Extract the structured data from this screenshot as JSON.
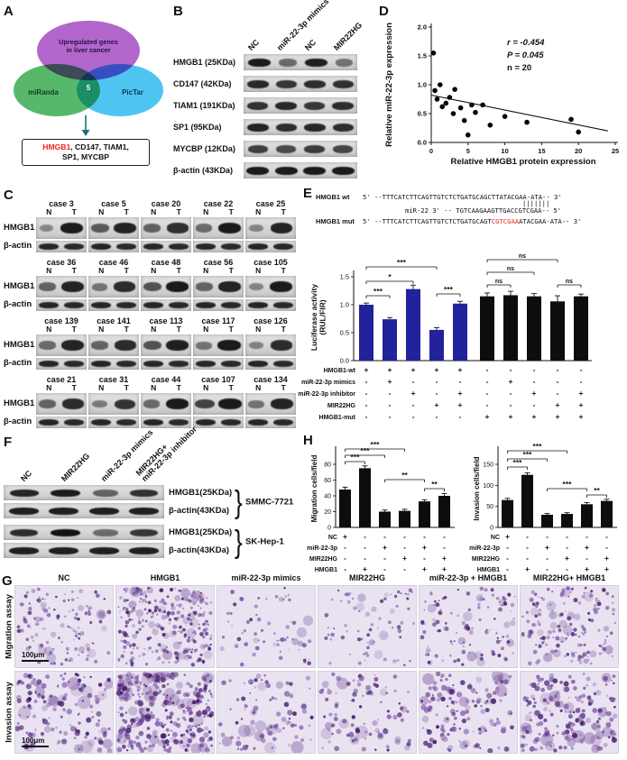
{
  "panels": {
    "A": "A",
    "B": "B",
    "C": "C",
    "D": "D",
    "E": "E",
    "F": "F",
    "G": "G",
    "H": "H"
  },
  "panelA": {
    "circle_top_line1": "Upregulated genes",
    "circle_top_line2": "in liver cancer",
    "circle_left": "miRanda",
    "circle_right": "PicTar",
    "overlap_count": "5",
    "genes_line1_highlight": "HMGB1",
    "genes_line1_rest": ", CD147, TIAM1,",
    "genes_line2": "SP1, MYCBP",
    "colors": {
      "top": "#a751c5",
      "left": "#3fae58",
      "right": "#35bdf0",
      "arrow": "#12737d",
      "highlight": "#e8251f"
    }
  },
  "panelB": {
    "lanes": [
      "NC",
      "miR-22-3p mimics",
      "NC",
      "MIR22HG"
    ],
    "rows": [
      {
        "label": "HMGB1 (25KDa)",
        "bands": [
          0.92,
          0.45,
          0.88,
          0.4
        ]
      },
      {
        "label": "CD147 (42KDa)",
        "bands": [
          0.82,
          0.75,
          0.8,
          0.78
        ]
      },
      {
        "label": "TIAM1 (191KDa)",
        "bands": [
          0.78,
          0.82,
          0.74,
          0.8
        ]
      },
      {
        "label": "SP1 (95KDa)",
        "bands": [
          0.86,
          0.8,
          0.84,
          0.8
        ]
      },
      {
        "label": "MYCBP (12KDa)",
        "bands": [
          0.7,
          0.64,
          0.72,
          0.66
        ]
      },
      {
        "label": "β-actin (43KDa)",
        "bands": [
          0.9,
          0.9,
          0.9,
          0.9
        ]
      }
    ]
  },
  "panelC": {
    "row_labels": [
      "HMGB1",
      "β-actin"
    ],
    "lane_labels": [
      "N",
      "T"
    ],
    "bactin_bands": [
      0.88,
      0.86
    ],
    "groups": [
      {
        "cases": [
          {
            "name": "case 3",
            "hmgb1": [
              0.25,
              0.95
            ]
          },
          {
            "name": "case 5",
            "hmgb1": [
              0.55,
              0.9
            ]
          },
          {
            "name": "case 20",
            "hmgb1": [
              0.5,
              0.82
            ]
          },
          {
            "name": "case 22",
            "hmgb1": [
              0.45,
              0.95
            ]
          },
          {
            "name": "case 25",
            "hmgb1": [
              0.28,
              0.9
            ]
          }
        ]
      },
      {
        "cases": [
          {
            "name": "case 36",
            "hmgb1": [
              0.5,
              0.9
            ]
          },
          {
            "name": "case 46",
            "hmgb1": [
              0.4,
              0.85
            ]
          },
          {
            "name": "case 48",
            "hmgb1": [
              0.6,
              0.95
            ]
          },
          {
            "name": "case 56",
            "hmgb1": [
              0.5,
              0.9
            ]
          },
          {
            "name": "case 105",
            "hmgb1": [
              0.3,
              0.95
            ]
          }
        ]
      },
      {
        "cases": [
          {
            "name": "case 139",
            "hmgb1": [
              0.45,
              0.9
            ]
          },
          {
            "name": "case 141",
            "hmgb1": [
              0.5,
              0.85
            ]
          },
          {
            "name": "case 113",
            "hmgb1": [
              0.6,
              0.92
            ]
          },
          {
            "name": "case 117",
            "hmgb1": [
              0.4,
              0.95
            ]
          },
          {
            "name": "case 126",
            "hmgb1": [
              0.3,
              0.85
            ]
          }
        ]
      },
      {
        "cases": [
          {
            "name": "case 21",
            "hmgb1": [
              0.5,
              0.85
            ]
          },
          {
            "name": "case 31",
            "hmgb1": [
              0.35,
              0.8
            ]
          },
          {
            "name": "case 44",
            "hmgb1": [
              0.45,
              0.95
            ]
          },
          {
            "name": "case 107",
            "hmgb1": [
              0.7,
              0.95
            ]
          },
          {
            "name": "case 134",
            "hmgb1": [
              0.4,
              0.9
            ]
          }
        ]
      }
    ]
  },
  "panelD": {
    "chart": {
      "type": "scatter",
      "xlabel": "Relative HMGB1 protein expression",
      "ylabel": "Relative miR-22-3p expression",
      "xticks": [
        0,
        5,
        10,
        15,
        20,
        25
      ],
      "ytick_labels": [
        "0.0",
        "0.5",
        "1.0",
        "1.5",
        "2.0"
      ],
      "yticks": [
        0,
        0.5,
        1,
        1.5,
        2
      ],
      "xlim": [
        0,
        25
      ],
      "ylim": [
        0,
        2
      ],
      "stats": [
        "r = -0.454",
        "P = 0.045",
        "n = 20"
      ],
      "points": [
        [
          0.3,
          1.55
        ],
        [
          0.5,
          0.9
        ],
        [
          0.8,
          0.75
        ],
        [
          1.2,
          1.0
        ],
        [
          1.5,
          0.62
        ],
        [
          2.0,
          0.68
        ],
        [
          2.5,
          0.78
        ],
        [
          3.0,
          0.5
        ],
        [
          3.2,
          0.92
        ],
        [
          4.0,
          0.6
        ],
        [
          4.5,
          0.38
        ],
        [
          5.0,
          0.13
        ],
        [
          5.5,
          0.65
        ],
        [
          6.0,
          0.52
        ],
        [
          7.0,
          0.65
        ],
        [
          8.0,
          0.3
        ],
        [
          10.0,
          0.45
        ],
        [
          13.0,
          0.35
        ],
        [
          19.0,
          0.4
        ],
        [
          20.0,
          0.18
        ]
      ],
      "trend": [
        [
          0,
          0.82
        ],
        [
          24,
          0.2
        ]
      ]
    }
  },
  "panelE": {
    "seq": {
      "wt_label": "HMGB1 wt",
      "wt_seq": "5' --TTTCATCTTCAGTTGTCTCTGATGCAGCTTATACGAA-ATA-- 3'",
      "pairing": "|||||||",
      "mir_line": "miR-22  3' -- TGTCAAGAAGTTGACCGTCGAA-- 5'",
      "mut_label": "HMGB1 mut",
      "mut_seq_pre": "5' --TTTCATCTTCAGTTGTCTCTGATGCAGT",
      "mut_seq_red": "CGTCGAA",
      "mut_seq_post": "ATACGAA-ATA-- 3'"
    },
    "chart": {
      "type": "bar",
      "ylabel_lines": [
        "Luciferase activity",
        "(RUL/FIR)"
      ],
      "yticks": [
        0,
        0.5,
        1,
        1.5
      ],
      "ylim": [
        0,
        1.5
      ],
      "values": [
        1.0,
        0.74,
        1.28,
        0.55,
        1.02,
        1.15,
        1.17,
        1.15,
        1.06,
        1.15
      ],
      "errors": [
        0.03,
        0.03,
        0.07,
        0.04,
        0.04,
        0.06,
        0.07,
        0.05,
        0.1,
        0.04
      ],
      "bar_colors": [
        "#22229a",
        "#22229a",
        "#22229a",
        "#22229a",
        "#22229a",
        "#0d0d0d",
        "#0d0d0d",
        "#0d0d0d",
        "#0d0d0d",
        "#0d0d0d"
      ],
      "sig": [
        {
          "a": 0,
          "b": 1,
          "label": "***",
          "y": 76
        },
        {
          "a": 0,
          "b": 2,
          "label": "*",
          "y": 60
        },
        {
          "a": 0,
          "b": 3,
          "label": "***",
          "y": 44
        },
        {
          "a": 3,
          "b": 4,
          "label": "***",
          "y": 74
        },
        {
          "a": 5,
          "b": 6,
          "label": "ns",
          "y": 64
        },
        {
          "a": 5,
          "b": 7,
          "label": "ns",
          "y": 50
        },
        {
          "a": 5,
          "b": 8,
          "label": "ns",
          "y": 36
        },
        {
          "a": 8,
          "b": 9,
          "label": "ns",
          "y": 64
        }
      ],
      "matrix": [
        {
          "label": "HMGB1-wt",
          "cells": [
            "+",
            "+",
            "+",
            "+",
            "+",
            "-",
            "-",
            "-",
            "-",
            "-"
          ]
        },
        {
          "label": "miR-22-3p mimics",
          "cells": [
            "-",
            "+",
            "-",
            "-",
            "-",
            "-",
            "+",
            "-",
            "-",
            "-"
          ]
        },
        {
          "label": "miR-22-3p inhibitor",
          "cells": [
            "-",
            "-",
            "+",
            "-",
            "+",
            "-",
            "-",
            "+",
            "-",
            "+"
          ]
        },
        {
          "label": "MIR22HG",
          "cells": [
            "-",
            "-",
            "-",
            "+",
            "+",
            "-",
            "-",
            "-",
            "+",
            "+"
          ]
        },
        {
          "label": "HMGB1-mut",
          "cells": [
            "-",
            "-",
            "-",
            "-",
            "-",
            "+",
            "+",
            "+",
            "+",
            "+"
          ]
        }
      ]
    }
  },
  "panelF": {
    "lanes": [
      "NC",
      "MIR22HG",
      "miR-22-3p mimics",
      "MIR22HG+\nmiR-22-3p inhibitor"
    ],
    "groups": [
      {
        "cell_line": "SMMC-7721",
        "rows": [
          {
            "label": "HMGB1(25KDa)",
            "bands": [
              0.85,
              0.9,
              0.5,
              0.78
            ]
          },
          {
            "label": "β-actin(43KDa)",
            "bands": [
              0.88,
              0.88,
              0.88,
              0.88
            ]
          }
        ]
      },
      {
        "cell_line": "SK-Hep-1",
        "rows": [
          {
            "label": "HMGB1(25KDa)",
            "bands": [
              0.8,
              0.95,
              0.45,
              0.75
            ]
          },
          {
            "label": "β-actin(43KDa)",
            "bands": [
              0.88,
              0.88,
              0.88,
              0.88
            ]
          }
        ]
      }
    ]
  },
  "panelH": {
    "charts": [
      {
        "type": "bar",
        "ylabel": "Migration cells/field",
        "yticks": [
          0,
          20,
          40,
          60,
          80
        ],
        "ylim": [
          0,
          80
        ],
        "values": [
          48,
          75,
          20,
          21,
          33,
          40
        ],
        "errors": [
          3,
          3,
          2,
          2,
          2,
          3
        ],
        "sig": [
          {
            "a": 0,
            "b": 1,
            "label": "***",
            "y": 22
          },
          {
            "a": 0,
            "b": 2,
            "label": "***",
            "y": 15
          },
          {
            "a": 0,
            "b": 3,
            "label": "***",
            "y": 8
          },
          {
            "a": 2,
            "b": 4,
            "label": "**",
            "y": 42
          },
          {
            "a": 4,
            "b": 5,
            "label": "**",
            "y": 52
          }
        ],
        "matrix": [
          {
            "label": "NC",
            "cells": [
              "+",
              "-",
              "-",
              "-",
              "-",
              "-"
            ]
          },
          {
            "label": "miR-22-3p",
            "cells": [
              "-",
              "-",
              "+",
              "-",
              "+",
              "-"
            ]
          },
          {
            "label": "MIR22HG",
            "cells": [
              "-",
              "-",
              "-",
              "+",
              "-",
              "+"
            ]
          },
          {
            "label": "HMGB1",
            "cells": [
              "-",
              "+",
              "-",
              "-",
              "+",
              "+"
            ]
          }
        ]
      },
      {
        "type": "bar",
        "ylabel": "Invasion cells/field",
        "yticks": [
          0,
          50,
          100,
          150
        ],
        "ylim": [
          0,
          150
        ],
        "values": [
          65,
          125,
          30,
          32,
          55,
          63
        ],
        "errors": [
          4,
          5,
          3,
          3,
          4,
          4
        ],
        "sig": [
          {
            "a": 0,
            "b": 1,
            "label": "***",
            "y": 28
          },
          {
            "a": 0,
            "b": 2,
            "label": "***",
            "y": 19
          },
          {
            "a": 0,
            "b": 3,
            "label": "***",
            "y": 10
          },
          {
            "a": 2,
            "b": 4,
            "label": "***",
            "y": 52
          },
          {
            "a": 4,
            "b": 5,
            "label": "**",
            "y": 59
          }
        ],
        "matrix": [
          {
            "label": "NC",
            "cells": [
              "+",
              "-",
              "-",
              "-",
              "-",
              "-"
            ]
          },
          {
            "label": "miR-22-3p",
            "cells": [
              "-",
              "-",
              "+",
              "-",
              "+",
              "-"
            ]
          },
          {
            "label": "MIR22HG",
            "cells": [
              "-",
              "-",
              "-",
              "+",
              "-",
              "+"
            ]
          },
          {
            "label": "HMGB1",
            "cells": [
              "-",
              "+",
              "-",
              "-",
              "+",
              "+"
            ]
          }
        ]
      }
    ]
  },
  "panelG": {
    "row_labels": [
      "Migration assay",
      "Invasion assay"
    ],
    "col_labels": [
      "NC",
      "HMGB1",
      "miR-22-3p mimics",
      "MIR22HG",
      "miR-22-3p + HMGB1",
      "MIR22HG+ HMGB1"
    ],
    "scale_label": "100μm",
    "densities": [
      [
        110,
        240,
        55,
        65,
        100,
        140
      ],
      [
        130,
        280,
        75,
        85,
        120,
        160
      ]
    ]
  }
}
